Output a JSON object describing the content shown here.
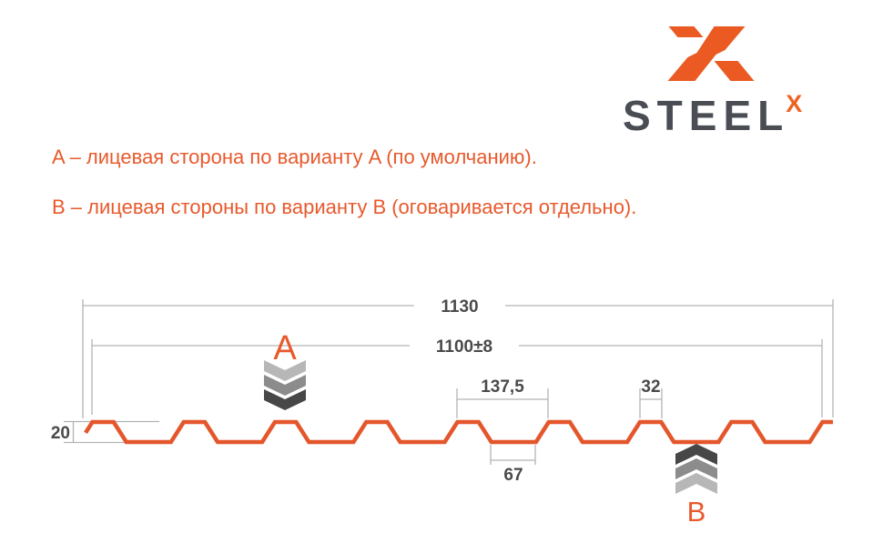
{
  "logo": {
    "brand": "STEEL",
    "brand_sup": "X",
    "orange": "#ea5a22",
    "dark": "#4a4e54"
  },
  "notes": {
    "line_a": "A – лицевая сторона по варианту A (по умолчанию).",
    "line_b": "B – лицевая стороны по варианту B (оговаривается отдельно)."
  },
  "diagram": {
    "dimensions": {
      "overall_width": "1130",
      "working_width": "1100±8",
      "rib_pitch": "137,5",
      "rib_top_width": "32",
      "rib_bottom_width": "67",
      "profile_height": "20"
    },
    "markers": {
      "front_label": "A",
      "back_label": "B",
      "front_chevron_colors": [
        "#b7b7b7",
        "#8c8c8c",
        "#474747"
      ],
      "back_chevron_colors": [
        "#474747",
        "#8c8c8c",
        "#b7b7b7"
      ]
    },
    "colors": {
      "profile_line": "#e4562b",
      "dimension_line": "#b3b3b3",
      "dimension_text": "#4a4a4a"
    }
  }
}
